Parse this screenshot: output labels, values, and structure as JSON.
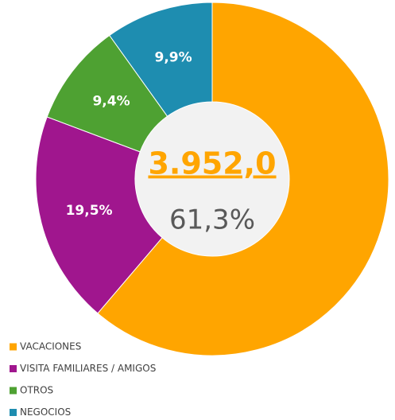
{
  "chart_data": {
    "type": "donut",
    "categories": [
      "VACACIONES",
      "VISITA FAMILIARES / AMIGOS",
      "OTROS",
      "NEGOCIOS"
    ],
    "values": [
      61.3,
      19.5,
      9.4,
      9.9
    ],
    "value_labels": [
      "61,3%",
      "19,5%",
      "9,4%",
      "9,9%"
    ],
    "colors": [
      "#FFA500",
      "#A0168E",
      "#4EA132",
      "#1E8DB0"
    ],
    "center_label": "3.952,0",
    "legend": "bottom-left"
  }
}
